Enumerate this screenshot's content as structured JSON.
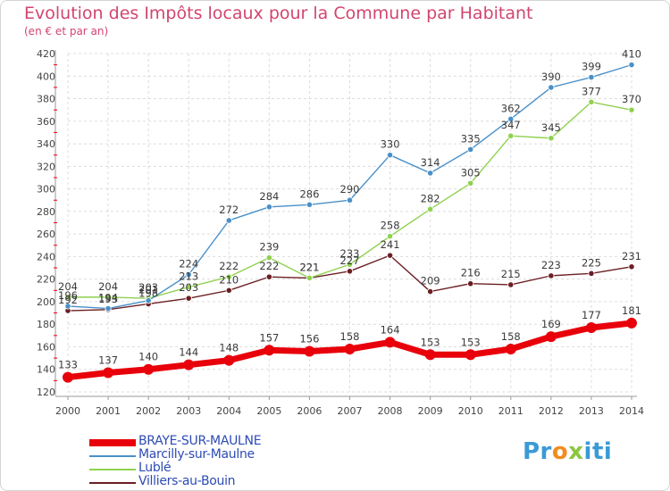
{
  "header": {
    "title": "Evolution des Impôts locaux pour la Commune par Habitant",
    "subtitle": "(en € et par an)"
  },
  "logo": {
    "text": "Proxiti"
  },
  "chart_data": {
    "type": "line",
    "x": [
      "2000",
      "2001",
      "2002",
      "2003",
      "2004",
      "2005",
      "2006",
      "2007",
      "2008",
      "2009",
      "2010",
      "2011",
      "2012",
      "2013",
      "2014"
    ],
    "ylim": [
      120,
      420
    ],
    "yticks": [
      120,
      140,
      160,
      180,
      200,
      220,
      240,
      260,
      280,
      300,
      320,
      340,
      360,
      380,
      400,
      420
    ],
    "xlabel": "",
    "ylabel": "",
    "grid": true,
    "legend_position": "bottom-left",
    "series": [
      {
        "name": "BRAYE-SUR-MAULNE",
        "color": "#e8000b",
        "values": [
          133,
          137,
          140,
          144,
          148,
          157,
          156,
          158,
          164,
          153,
          153,
          158,
          169,
          177,
          181
        ]
      },
      {
        "name": "Marcilly-sur-Maulne",
        "color": "#4a90c8",
        "values": [
          196,
          194,
          201,
          224,
          272,
          284,
          286,
          290,
          330,
          314,
          335,
          362,
          390,
          399,
          410
        ]
      },
      {
        "name": "Lublé",
        "color": "#8fd14f",
        "values": [
          204,
          204,
          203,
          213,
          222,
          239,
          221,
          233,
          258,
          282,
          305,
          347,
          345,
          377,
          370
        ]
      },
      {
        "name": "Villiers-au-Bouin",
        "color": "#6b1f24",
        "values": [
          192,
          193,
          198,
          203,
          210,
          222,
          221,
          227,
          241,
          209,
          216,
          215,
          223,
          225,
          231
        ]
      }
    ]
  }
}
